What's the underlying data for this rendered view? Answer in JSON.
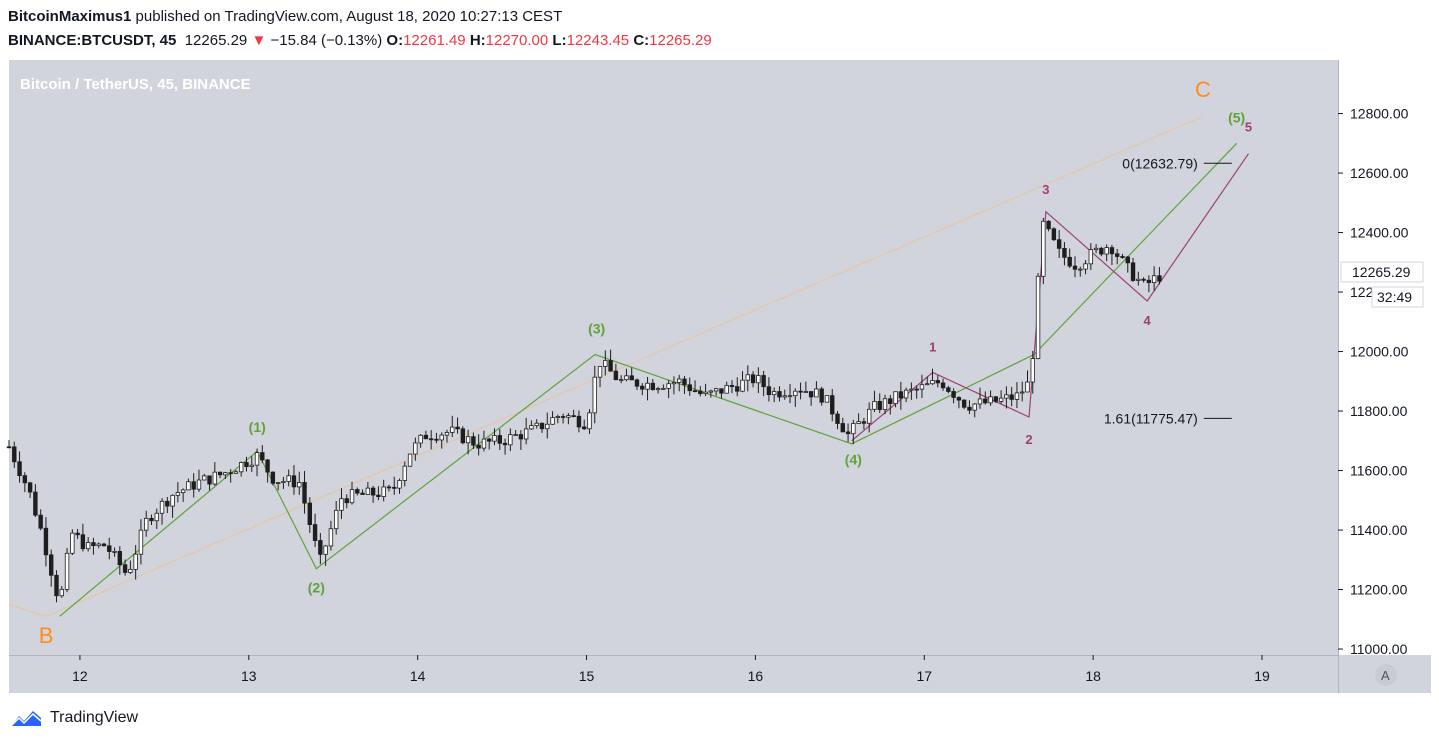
{
  "header": {
    "author": "BitcoinMaximus1",
    "published": "published on TradingView.com, August 18, 2020 10:27:13 CEST"
  },
  "quote": {
    "symbol": "BINANCE:BTCUSDT, 45",
    "last": "12265.29",
    "change": "−15.84 (−0.13%)",
    "o_label": "O:",
    "o": "12261.49",
    "h_label": "H:",
    "h": "12270.00",
    "l_label": "L:",
    "l": "12243.45",
    "c_label": "C:",
    "c": "12265.29"
  },
  "footer": {
    "brand": "TradingView"
  },
  "colors": {
    "pane": "#d1d4dc",
    "candle": "#1e1e1e",
    "green": "#5ea33a",
    "purple": "#9e3f73",
    "orange": "#ff8c1a",
    "tan": "#e6c6a6",
    "watermark": "#ffffff"
  },
  "chart_data": {
    "type": "candlestick",
    "title": "Bitcoin / TetherUS, 45, BINANCE",
    "x_ticks": [
      "12",
      "13",
      "14",
      "15",
      "16",
      "17",
      "18",
      "19"
    ],
    "y_ticks": [
      "11000.00",
      "11200.00",
      "11400.00",
      "11600.00",
      "11800.00",
      "12000.00",
      "12200.00",
      "12400.00",
      "12600.00",
      "12800.00"
    ],
    "ylim": [
      10980,
      12980
    ],
    "xlim": [
      11.58,
      19.45
    ],
    "last_price_label": "12265.29",
    "countdown_label": "32:49",
    "auto_button": "A",
    "grid": false,
    "price_path": [
      [
        11.58,
        11680
      ],
      [
        11.7,
        11530
      ],
      [
        11.78,
        11380
      ],
      [
        11.88,
        11150
      ],
      [
        11.95,
        11390
      ],
      [
        12.05,
        11340
      ],
      [
        12.15,
        11350
      ],
      [
        12.28,
        11250
      ],
      [
        12.4,
        11440
      ],
      [
        12.55,
        11520
      ],
      [
        12.7,
        11560
      ],
      [
        12.85,
        11590
      ],
      [
        13.05,
        11650
      ],
      [
        13.15,
        11570
      ],
      [
        13.3,
        11560
      ],
      [
        13.42,
        11290
      ],
      [
        13.55,
        11510
      ],
      [
        13.7,
        11520
      ],
      [
        13.85,
        11530
      ],
      [
        13.95,
        11660
      ],
      [
        14.05,
        11720
      ],
      [
        14.2,
        11730
      ],
      [
        14.35,
        11690
      ],
      [
        14.5,
        11700
      ],
      [
        14.7,
        11740
      ],
      [
        14.85,
        11790
      ],
      [
        15.0,
        11760
      ],
      [
        15.07,
        11970
      ],
      [
        15.2,
        11900
      ],
      [
        15.4,
        11890
      ],
      [
        15.55,
        11900
      ],
      [
        15.7,
        11850
      ],
      [
        15.85,
        11880
      ],
      [
        16.0,
        11910
      ],
      [
        16.1,
        11860
      ],
      [
        16.25,
        11880
      ],
      [
        16.4,
        11850
      ],
      [
        16.55,
        11720
      ],
      [
        16.7,
        11810
      ],
      [
        16.85,
        11850
      ],
      [
        17.0,
        11880
      ],
      [
        17.1,
        11900
      ],
      [
        17.25,
        11820
      ],
      [
        17.4,
        11830
      ],
      [
        17.55,
        11850
      ],
      [
        17.63,
        11900
      ],
      [
        17.7,
        12430
      ],
      [
        17.8,
        12330
      ],
      [
        17.9,
        12290
      ],
      [
        18.0,
        12330
      ],
      [
        18.1,
        12360
      ],
      [
        18.2,
        12280
      ],
      [
        18.3,
        12220
      ],
      [
        18.42,
        12265
      ]
    ],
    "wave_green": {
      "points": [
        [
          11.88,
          11110
        ],
        [
          13.05,
          11665
        ],
        [
          13.4,
          11270
        ],
        [
          15.05,
          11990
        ],
        [
          16.57,
          11690
        ],
        [
          17.65,
          11990
        ],
        [
          18.85,
          12700
        ]
      ],
      "labels": [
        {
          "text": "(1)",
          "x": 13.05,
          "y": 11730
        },
        {
          "text": "(2)",
          "x": 13.4,
          "y": 11190
        },
        {
          "text": "(3)",
          "x": 15.06,
          "y": 12060
        },
        {
          "text": "(4)",
          "x": 16.58,
          "y": 11620
        },
        {
          "text": "(5)",
          "x": 18.85,
          "y": 12770
        }
      ]
    },
    "wave_purple": {
      "points": [
        [
          16.57,
          11700
        ],
        [
          17.05,
          11930
        ],
        [
          17.62,
          11780
        ],
        [
          17.72,
          12470
        ],
        [
          18.32,
          12170
        ],
        [
          18.92,
          12665
        ]
      ],
      "labels": [
        {
          "text": "1",
          "x": 17.05,
          "y": 12000
        },
        {
          "text": "2",
          "x": 17.62,
          "y": 11690
        },
        {
          "text": "3",
          "x": 17.72,
          "y": 12530
        },
        {
          "text": "4",
          "x": 18.32,
          "y": 12090
        },
        {
          "text": "5",
          "x": 18.92,
          "y": 12740
        }
      ]
    },
    "wave_orange": {
      "points": [
        [
          11.58,
          11150
        ],
        [
          11.8,
          11110
        ],
        [
          18.65,
          12790
        ]
      ],
      "labels": [
        {
          "text": "B",
          "x": 11.8,
          "y": 11020
        },
        {
          "text": "C",
          "x": 18.65,
          "y": 12855
        }
      ]
    },
    "fib_levels": [
      {
        "label": "0(12632.79)",
        "value": 12632.79,
        "x_start": 18.3
      },
      {
        "label": "1.61(11775.47)",
        "value": 11775.47,
        "x_start": 18.3
      }
    ]
  }
}
